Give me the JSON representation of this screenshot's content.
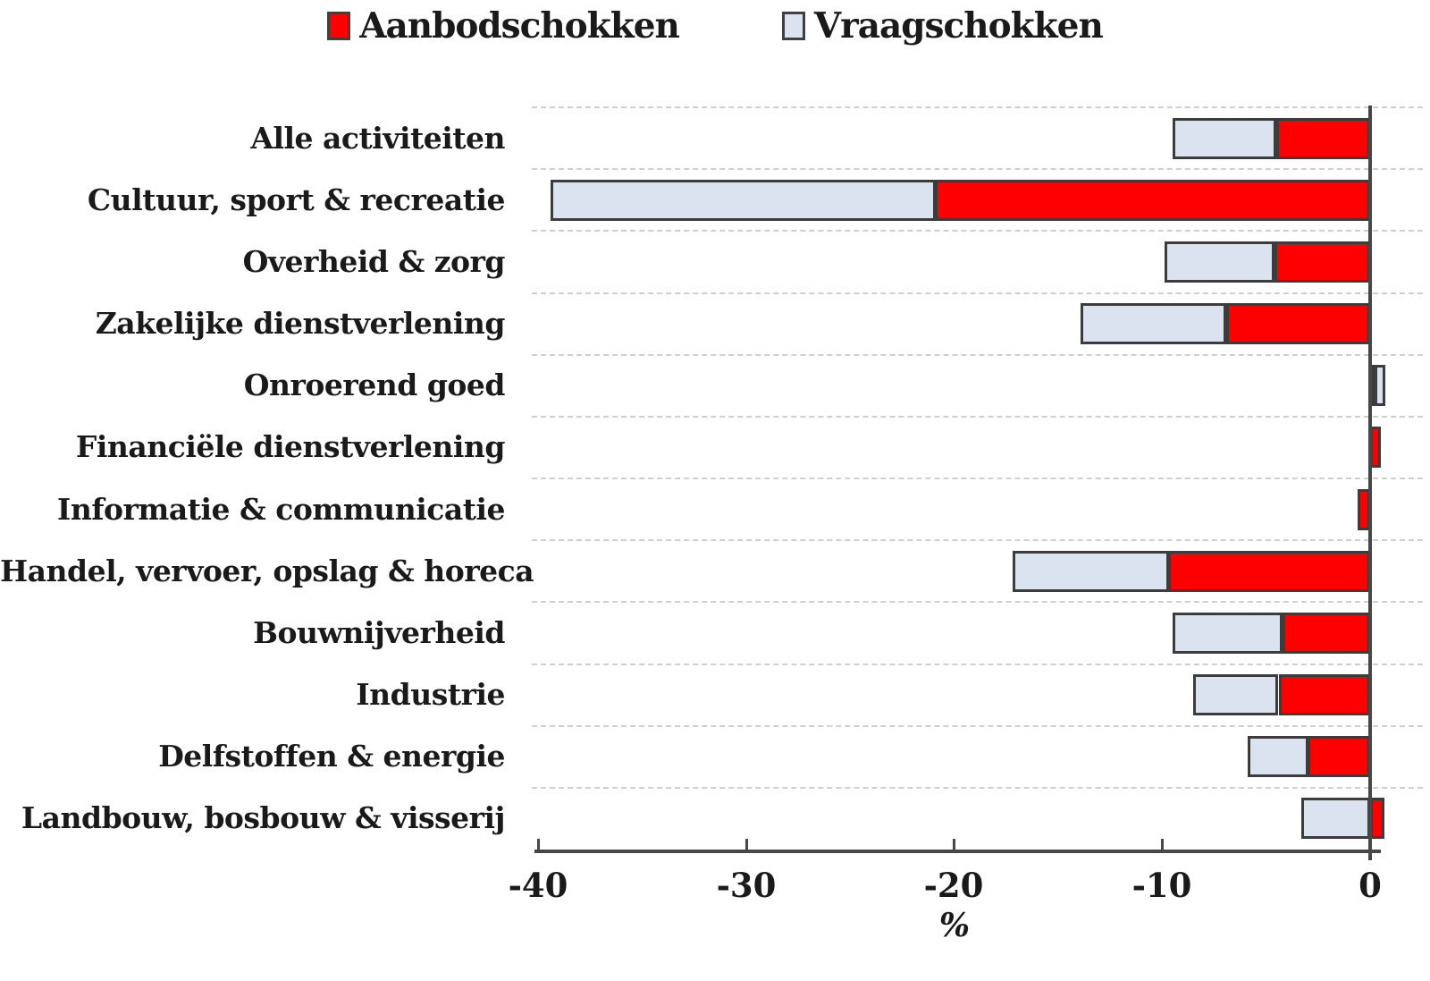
{
  "legend": {
    "items": [
      {
        "label": "Aanbodschokken",
        "color": "#ff0000"
      },
      {
        "label": "Vraagschokken",
        "color": "#dbe3f0"
      }
    ]
  },
  "chart_data": {
    "type": "bar",
    "orientation": "horizontal",
    "stacked": true,
    "title": "",
    "xlabel": "%",
    "ylabel": "",
    "xlim": [
      -40,
      1.5
    ],
    "x_ticks": [
      -40,
      -30,
      -20,
      -10,
      0
    ],
    "grid": "dashed-horizontal",
    "legend_position": "top-center",
    "categories": [
      "Alle activiteiten",
      "Cultuur, sport & recreatie",
      "Overheid & zorg",
      "Zakelijke dienstverlening",
      "Onroerend goed",
      "Financiële dienstverlening",
      "Informatie & communicatie",
      "Handel, vervoer, opslag & horeca",
      "Bouwnijverheid",
      "Industrie",
      "Delfstoffen & energie",
      "Landbouw, bosbouw & visserij"
    ],
    "series": [
      {
        "name": "Aanbodschokken",
        "color": "#ff0000",
        "values": [
          -4.5,
          -20.9,
          -4.6,
          -6.9,
          0.2,
          0.5,
          -0.6,
          -9.7,
          -4.2,
          -4.4,
          -3.0,
          0.7
        ]
      },
      {
        "name": "Vraagschokken",
        "color": "#dbe3f0",
        "values": [
          -5.0,
          -18.5,
          -5.3,
          -7.0,
          0.5,
          0.0,
          0.0,
          -7.5,
          -5.3,
          -4.1,
          -2.9,
          -3.3
        ]
      }
    ]
  },
  "colors": {
    "segment_border": "#3c3c3c",
    "axis": "#474747",
    "gridline": "#cbcfd6",
    "text": "#1a1a1a"
  }
}
